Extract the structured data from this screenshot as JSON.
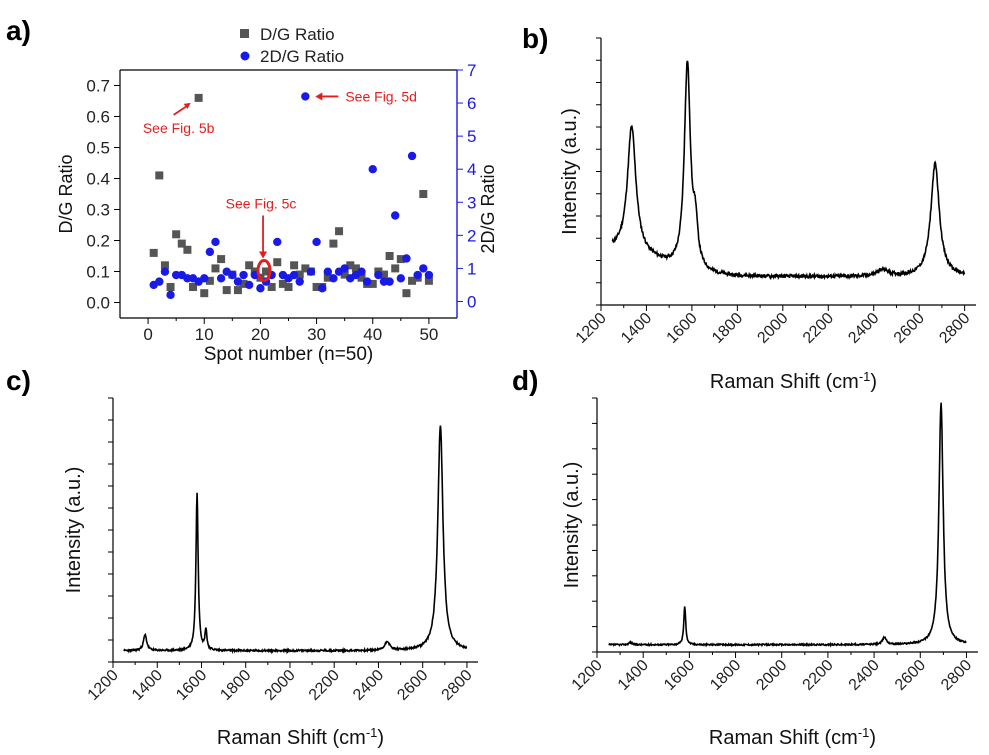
{
  "panels": {
    "a_label": "a)",
    "b_label": "b)",
    "c_label": "c)",
    "d_label": "d)"
  },
  "colors": {
    "dg_marker": "#555555",
    "tdg_marker": "#1a1ae6",
    "right_axis": "#1a1ae6",
    "annotation": "#e41e1e",
    "line": "#000000"
  },
  "chart_data": [
    {
      "id": "a",
      "type": "scatter",
      "xlabel": "Spot number (n=50)",
      "ylabel": "D/G Ratio",
      "y2label": "2D/G Ratio",
      "xlim": [
        -5,
        55
      ],
      "ylim": [
        -0.05,
        0.75
      ],
      "y2lim": [
        -0.5,
        7
      ],
      "xticks": [
        0,
        10,
        20,
        30,
        40,
        50
      ],
      "yticks": [
        0.0,
        0.1,
        0.2,
        0.3,
        0.4,
        0.5,
        0.6,
        0.7
      ],
      "ytick_labels": [
        "0.0",
        "0.1",
        "0.2",
        "0.3",
        "0.4",
        "0.5",
        "0.6",
        "0.7"
      ],
      "y2ticks": [
        0,
        1,
        2,
        3,
        4,
        5,
        6,
        7
      ],
      "legend": [
        "D/G Ratio",
        "2D/G Ratio"
      ],
      "series": [
        {
          "name": "D/G Ratio",
          "axis": "left",
          "x": [
            1,
            2,
            3,
            4,
            5,
            6,
            7,
            8,
            9,
            10,
            11,
            12,
            13,
            14,
            15,
            16,
            17,
            18,
            19,
            20,
            21,
            22,
            23,
            24,
            25,
            26,
            27,
            28,
            29,
            30,
            31,
            32,
            33,
            34,
            35,
            36,
            37,
            38,
            39,
            40,
            41,
            42,
            43,
            44,
            45,
            46,
            47,
            48,
            49,
            50
          ],
          "y": [
            0.16,
            0.41,
            0.12,
            0.05,
            0.22,
            0.19,
            0.17,
            0.05,
            0.66,
            0.03,
            0.07,
            0.11,
            0.14,
            0.04,
            0.09,
            0.04,
            0.06,
            0.12,
            0.1,
            0.08,
            0.1,
            0.05,
            0.13,
            0.06,
            0.05,
            0.12,
            0.09,
            0.11,
            0.1,
            0.05,
            0.05,
            0.08,
            0.19,
            0.23,
            0.09,
            0.12,
            0.11,
            0.08,
            0.06,
            0.06,
            0.1,
            0.09,
            0.15,
            0.11,
            0.14,
            0.03,
            0.07,
            0.08,
            0.35,
            0.07
          ]
        },
        {
          "name": "2D/G Ratio",
          "axis": "right",
          "x": [
            1,
            2,
            3,
            4,
            5,
            6,
            7,
            8,
            9,
            10,
            11,
            12,
            13,
            14,
            15,
            16,
            17,
            18,
            19,
            20,
            21,
            22,
            23,
            24,
            25,
            26,
            27,
            28,
            29,
            30,
            31,
            32,
            33,
            34,
            35,
            36,
            37,
            38,
            39,
            40,
            41,
            42,
            43,
            44,
            45,
            46,
            47,
            48,
            49,
            50
          ],
          "y": [
            0.5,
            0.6,
            0.9,
            0.2,
            0.8,
            0.8,
            0.7,
            0.7,
            0.6,
            0.7,
            1.5,
            1.8,
            0.7,
            0.9,
            0.8,
            0.6,
            0.8,
            0.5,
            0.8,
            0.4,
            0.6,
            0.8,
            1.8,
            0.8,
            0.7,
            0.8,
            0.6,
            6.2,
            0.9,
            1.8,
            0.4,
            0.9,
            0.7,
            0.9,
            1.0,
            0.7,
            0.8,
            0.9,
            0.6,
            4.0,
            0.8,
            0.6,
            0.6,
            2.6,
            0.7,
            1.3,
            4.4,
            0.8,
            1.0,
            0.8
          ]
        }
      ],
      "annotations": [
        {
          "text": "See Fig. 5b",
          "x": 9,
          "y": 0.66,
          "axis": "left"
        },
        {
          "text": "See Fig. 5d",
          "x": 28,
          "y": 6.2,
          "axis": "right"
        },
        {
          "text": "See Fig. 5c",
          "x": 21,
          "y": 0.1,
          "axis": "left"
        }
      ]
    },
    {
      "id": "b",
      "type": "line",
      "xlabel": "Raman Shift (cm",
      "xlabel_sup": "-1",
      "xlabel_end": ")",
      "ylabel": "Intensity (a.u.)",
      "xlim": [
        1200,
        2850
      ],
      "xticks": [
        1200,
        1400,
        1600,
        1800,
        2000,
        2200,
        2400,
        2600,
        2800
      ],
      "baseline": 0.05,
      "noise": 0.008,
      "ylim": [
        -0.08,
        1.15
      ],
      "minor_yticks": 12,
      "range": [
        1250,
        2800
      ],
      "peaks": [
        {
          "center": 1335,
          "height": 0.58,
          "width": 45
        },
        {
          "center": 1580,
          "height": 0.95,
          "width": 32
        },
        {
          "center": 1615,
          "height": 0.18,
          "width": 25
        },
        {
          "center": 2670,
          "height": 0.52,
          "width": 45
        },
        {
          "center": 2440,
          "height": 0.03,
          "width": 60
        }
      ]
    },
    {
      "id": "c",
      "type": "line",
      "xlabel": "Raman Shift (cm",
      "xlabel_sup": "-1",
      "xlabel_end": ")",
      "ylabel": "Intensity (a.u.)",
      "xlim": [
        1200,
        2850
      ],
      "xticks": [
        1200,
        1400,
        1600,
        1800,
        2000,
        2200,
        2400,
        2600,
        2800
      ],
      "baseline": 0.0,
      "noise": 0.004,
      "ylim": [
        -0.05,
        1.12
      ],
      "minor_yticks": 12,
      "range": [
        1250,
        2800
      ],
      "peaks": [
        {
          "center": 1345,
          "height": 0.07,
          "width": 18
        },
        {
          "center": 1580,
          "height": 0.7,
          "width": 12
        },
        {
          "center": 1620,
          "height": 0.09,
          "width": 10
        },
        {
          "center": 2440,
          "height": 0.04,
          "width": 25
        },
        {
          "center": 2680,
          "height": 1.0,
          "width": 28
        }
      ]
    },
    {
      "id": "d",
      "type": "line",
      "xlabel": "Raman Shift (cm",
      "xlabel_sup": "-1",
      "xlabel_end": ")",
      "ylabel": "Intensity (a.u.)",
      "xlim": [
        1200,
        2850
      ],
      "xticks": [
        1200,
        1400,
        1600,
        1800,
        2000,
        2200,
        2400,
        2600,
        2800
      ],
      "baseline": 0.0,
      "noise": 0.003,
      "ylim": [
        -0.03,
        1.02
      ],
      "minor_yticks": 10,
      "range": [
        1250,
        2800
      ],
      "peaks": [
        {
          "center": 1345,
          "height": 0.01,
          "width": 18
        },
        {
          "center": 1580,
          "height": 0.16,
          "width": 10
        },
        {
          "center": 2445,
          "height": 0.03,
          "width": 20
        },
        {
          "center": 2690,
          "height": 1.0,
          "width": 22
        }
      ]
    }
  ]
}
